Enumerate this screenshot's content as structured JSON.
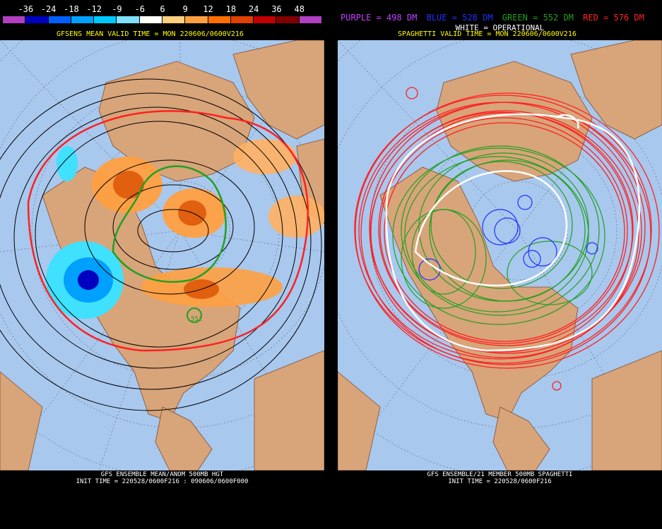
{
  "colorbar": {
    "labels": [
      "-36",
      "-24",
      "-18",
      "-12",
      "-9",
      "-6",
      "6",
      "9",
      "12",
      "18",
      "24",
      "36",
      "48"
    ],
    "colors": [
      "#b040c0",
      "#0000c0",
      "#0060ff",
      "#00a0ff",
      "#00c8ff",
      "#80e0ff",
      "#ffffff",
      "#ffd080",
      "#ffa040",
      "#ff7000",
      "#e04000",
      "#c00000",
      "#800000",
      "#b040c0"
    ]
  },
  "left": {
    "subtitle": "GFSENS MEAN VALID TIME = MON 220606/0600V216",
    "footer_line1": "GFS ENSEMBLE MEAN/ANOM 500MB HGT",
    "footer_line2": "INIT TIME = 220528/0600F216 : 090606/0600F000",
    "contour_label": "552"
  },
  "right": {
    "legend": [
      {
        "text": "PURPLE = 498 DM",
        "color": "#c040ff"
      },
      {
        "text": "BLUE = 528 DM",
        "color": "#2030ff"
      },
      {
        "text": "GREEN = 552 DM",
        "color": "#20a020"
      },
      {
        "text": "RED = 576 DM",
        "color": "#ff2020"
      }
    ],
    "operational": "WHITE = OPERATIONAL",
    "subtitle": "SPAGHETTI VALID TIME = MON 220606/0600V216",
    "footer_line1": "GFS ENSEMBLE/21 MEMBER 500MB SPAGHETTI",
    "footer_line2": "INIT TIME = 220528/0600F216"
  },
  "colors": {
    "ocean": "#a8c8ee",
    "land": "#d8a47a",
    "red_contour": "#ff2020",
    "green_contour": "#20a020",
    "blue_contour": "#2030ff",
    "white_contour": "#ffffff",
    "black_contour": "#000000"
  }
}
